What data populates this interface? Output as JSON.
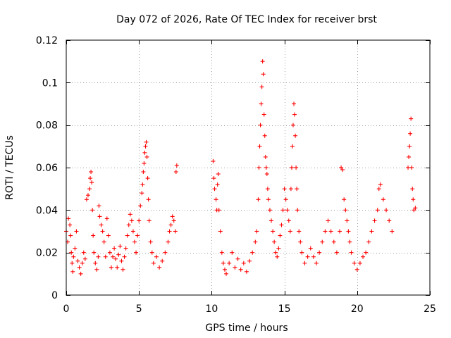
{
  "chart_data": {
    "type": "scatter",
    "title": "Day 072 of 2026, Rate Of TEC Index for receiver brst",
    "xlabel": "GPS time / hours",
    "ylabel": "ROTI / TECUs",
    "xlim": [
      0,
      25
    ],
    "ylim": [
      0,
      0.12
    ],
    "xticks": [
      0,
      5,
      10,
      15,
      20,
      25
    ],
    "xtick_labels": [
      "0",
      "5",
      "10",
      "15",
      "20",
      "25"
    ],
    "yticks": [
      0,
      0.02,
      0.04,
      0.06,
      0.08,
      0.1,
      0.12
    ],
    "ytick_labels": [
      "0",
      "0.02",
      "0.04",
      "0.06",
      "0.08",
      "0.1",
      "0.12"
    ],
    "grid": true,
    "marker": "+",
    "color": "#ff0000",
    "series": [
      {
        "name": "ROTI",
        "points": [
          [
            0.0,
            0.03
          ],
          [
            0.1,
            0.025
          ],
          [
            0.15,
            0.036
          ],
          [
            0.25,
            0.033
          ],
          [
            0.3,
            0.028
          ],
          [
            0.35,
            0.02
          ],
          [
            0.4,
            0.015
          ],
          [
            0.45,
            0.011
          ],
          [
            0.5,
            0.018
          ],
          [
            0.6,
            0.022
          ],
          [
            0.7,
            0.03
          ],
          [
            0.8,
            0.016
          ],
          [
            0.9,
            0.013
          ],
          [
            1.0,
            0.01
          ],
          [
            1.1,
            0.015
          ],
          [
            1.2,
            0.02
          ],
          [
            1.3,
            0.017
          ],
          [
            1.4,
            0.045
          ],
          [
            1.5,
            0.047
          ],
          [
            1.6,
            0.05
          ],
          [
            1.65,
            0.055
          ],
          [
            1.7,
            0.058
          ],
          [
            1.75,
            0.053
          ],
          [
            1.8,
            0.04
          ],
          [
            1.85,
            0.028
          ],
          [
            1.9,
            0.02
          ],
          [
            2.0,
            0.015
          ],
          [
            2.1,
            0.012
          ],
          [
            2.2,
            0.018
          ],
          [
            2.25,
            0.042
          ],
          [
            2.3,
            0.037
          ],
          [
            2.4,
            0.033
          ],
          [
            2.5,
            0.03
          ],
          [
            2.6,
            0.025
          ],
          [
            2.7,
            0.018
          ],
          [
            2.8,
            0.036
          ],
          [
            2.9,
            0.028
          ],
          [
            3.0,
            0.02
          ],
          [
            3.1,
            0.013
          ],
          [
            3.2,
            0.018
          ],
          [
            3.3,
            0.022
          ],
          [
            3.4,
            0.017
          ],
          [
            3.5,
            0.013
          ],
          [
            3.6,
            0.019
          ],
          [
            3.7,
            0.023
          ],
          [
            3.8,
            0.016
          ],
          [
            3.9,
            0.012
          ],
          [
            4.0,
            0.018
          ],
          [
            4.1,
            0.022
          ],
          [
            4.2,
            0.028
          ],
          [
            4.3,
            0.033
          ],
          [
            4.4,
            0.038
          ],
          [
            4.5,
            0.035
          ],
          [
            4.6,
            0.03
          ],
          [
            4.7,
            0.025
          ],
          [
            4.8,
            0.02
          ],
          [
            4.9,
            0.028
          ],
          [
            5.0,
            0.035
          ],
          [
            5.1,
            0.042
          ],
          [
            5.2,
            0.048
          ],
          [
            5.25,
            0.052
          ],
          [
            5.3,
            0.058
          ],
          [
            5.35,
            0.062
          ],
          [
            5.4,
            0.067
          ],
          [
            5.45,
            0.07
          ],
          [
            5.5,
            0.072
          ],
          [
            5.55,
            0.065
          ],
          [
            5.6,
            0.055
          ],
          [
            5.65,
            0.045
          ],
          [
            5.7,
            0.035
          ],
          [
            5.8,
            0.025
          ],
          [
            5.9,
            0.02
          ],
          [
            6.0,
            0.015
          ],
          [
            6.2,
            0.018
          ],
          [
            6.4,
            0.013
          ],
          [
            6.6,
            0.016
          ],
          [
            6.8,
            0.02
          ],
          [
            7.0,
            0.025
          ],
          [
            7.1,
            0.03
          ],
          [
            7.2,
            0.033
          ],
          [
            7.3,
            0.037
          ],
          [
            7.4,
            0.035
          ],
          [
            7.5,
            0.03
          ],
          [
            7.55,
            0.058
          ],
          [
            7.6,
            0.061
          ],
          [
            10.1,
            0.063
          ],
          [
            10.15,
            0.055
          ],
          [
            10.2,
            0.05
          ],
          [
            10.3,
            0.045
          ],
          [
            10.35,
            0.04
          ],
          [
            10.4,
            0.052
          ],
          [
            10.45,
            0.057
          ],
          [
            10.5,
            0.04
          ],
          [
            10.6,
            0.03
          ],
          [
            10.7,
            0.02
          ],
          [
            10.8,
            0.015
          ],
          [
            10.9,
            0.012
          ],
          [
            11.0,
            0.01
          ],
          [
            11.2,
            0.015
          ],
          [
            11.4,
            0.02
          ],
          [
            11.6,
            0.013
          ],
          [
            11.8,
            0.017
          ],
          [
            12.0,
            0.012
          ],
          [
            12.2,
            0.015
          ],
          [
            12.4,
            0.011
          ],
          [
            12.6,
            0.016
          ],
          [
            12.8,
            0.02
          ],
          [
            13.0,
            0.025
          ],
          [
            13.1,
            0.03
          ],
          [
            13.2,
            0.045
          ],
          [
            13.25,
            0.06
          ],
          [
            13.3,
            0.07
          ],
          [
            13.35,
            0.08
          ],
          [
            13.4,
            0.09
          ],
          [
            13.45,
            0.098
          ],
          [
            13.5,
            0.11
          ],
          [
            13.55,
            0.104
          ],
          [
            13.6,
            0.085
          ],
          [
            13.65,
            0.075
          ],
          [
            13.7,
            0.065
          ],
          [
            13.75,
            0.06
          ],
          [
            13.8,
            0.057
          ],
          [
            13.85,
            0.05
          ],
          [
            13.9,
            0.045
          ],
          [
            14.0,
            0.04
          ],
          [
            14.1,
            0.035
          ],
          [
            14.2,
            0.03
          ],
          [
            14.3,
            0.025
          ],
          [
            14.4,
            0.02
          ],
          [
            14.5,
            0.018
          ],
          [
            14.6,
            0.022
          ],
          [
            14.7,
            0.028
          ],
          [
            14.8,
            0.033
          ],
          [
            14.9,
            0.04
          ],
          [
            15.0,
            0.05
          ],
          [
            15.1,
            0.045
          ],
          [
            15.2,
            0.04
          ],
          [
            15.3,
            0.035
          ],
          [
            15.4,
            0.03
          ],
          [
            15.45,
            0.05
          ],
          [
            15.5,
            0.06
          ],
          [
            15.55,
            0.07
          ],
          [
            15.6,
            0.08
          ],
          [
            15.65,
            0.09
          ],
          [
            15.7,
            0.085
          ],
          [
            15.75,
            0.075
          ],
          [
            15.8,
            0.06
          ],
          [
            15.85,
            0.05
          ],
          [
            15.9,
            0.04
          ],
          [
            16.0,
            0.03
          ],
          [
            16.1,
            0.025
          ],
          [
            16.2,
            0.02
          ],
          [
            16.4,
            0.015
          ],
          [
            16.6,
            0.018
          ],
          [
            16.8,
            0.022
          ],
          [
            17.0,
            0.018
          ],
          [
            17.2,
            0.015
          ],
          [
            17.4,
            0.02
          ],
          [
            17.6,
            0.025
          ],
          [
            17.8,
            0.03
          ],
          [
            18.0,
            0.035
          ],
          [
            18.2,
            0.03
          ],
          [
            18.4,
            0.025
          ],
          [
            18.6,
            0.02
          ],
          [
            18.8,
            0.03
          ],
          [
            18.9,
            0.06
          ],
          [
            19.0,
            0.059
          ],
          [
            19.1,
            0.045
          ],
          [
            19.2,
            0.04
          ],
          [
            19.3,
            0.035
          ],
          [
            19.4,
            0.03
          ],
          [
            19.5,
            0.025
          ],
          [
            19.6,
            0.02
          ],
          [
            19.8,
            0.015
          ],
          [
            20.0,
            0.012
          ],
          [
            20.2,
            0.015
          ],
          [
            20.4,
            0.018
          ],
          [
            20.6,
            0.02
          ],
          [
            20.8,
            0.025
          ],
          [
            21.0,
            0.03
          ],
          [
            21.2,
            0.035
          ],
          [
            21.4,
            0.04
          ],
          [
            21.5,
            0.05
          ],
          [
            21.6,
            0.052
          ],
          [
            21.8,
            0.045
          ],
          [
            22.0,
            0.04
          ],
          [
            22.2,
            0.035
          ],
          [
            22.4,
            0.03
          ],
          [
            23.5,
            0.06
          ],
          [
            23.55,
            0.065
          ],
          [
            23.6,
            0.07
          ],
          [
            23.65,
            0.076
          ],
          [
            23.7,
            0.083
          ],
          [
            23.75,
            0.06
          ],
          [
            23.8,
            0.05
          ],
          [
            23.85,
            0.045
          ],
          [
            23.9,
            0.04
          ],
          [
            24.0,
            0.041
          ]
        ]
      }
    ]
  }
}
